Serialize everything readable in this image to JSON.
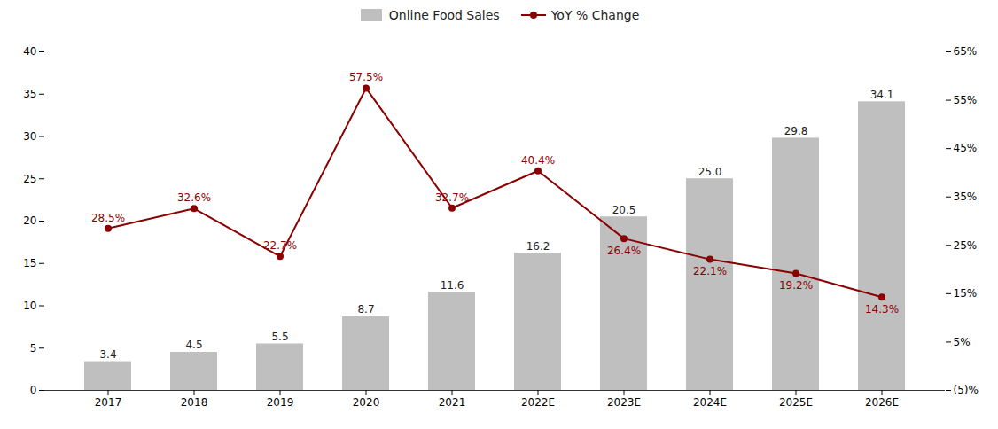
{
  "chart_data": {
    "type": "bar",
    "categories": [
      "2017",
      "2018",
      "2019",
      "2020",
      "2021",
      "2022E",
      "2023E",
      "2024E",
      "2025E",
      "2026E"
    ],
    "series": [
      {
        "name": "Online Food Sales",
        "type": "bar",
        "color": "#bfbfbf",
        "values": [
          3.4,
          4.5,
          5.5,
          8.7,
          11.6,
          16.2,
          20.5,
          25.0,
          29.8,
          34.1
        ],
        "value_labels": [
          "3.4",
          "4.5",
          "5.5",
          "8.7",
          "11.6",
          "16.2",
          "20.5",
          "25.0",
          "29.8",
          "34.1"
        ]
      },
      {
        "name": "YoY % Change",
        "type": "line",
        "axis": "y2",
        "color": "#8b0000",
        "marker": "circle",
        "values": [
          28.5,
          32.6,
          22.7,
          57.5,
          32.7,
          40.4,
          26.4,
          22.1,
          19.2,
          14.3
        ],
        "value_labels": [
          "28.5%",
          "32.6%",
          "22.7%",
          "57.5%",
          "32.7%",
          "40.4%",
          "26.4%",
          "22.1%",
          "19.2%",
          "14.3%"
        ]
      }
    ],
    "ylim": [
      0,
      40
    ],
    "yticks": [
      0,
      5,
      10,
      15,
      20,
      25,
      30,
      35,
      40
    ],
    "y2lim": [
      -5,
      65
    ],
    "y2ticks": [
      {
        "value": -5,
        "label": "(5)%"
      },
      {
        "value": 5,
        "label": "5%"
      },
      {
        "value": 15,
        "label": "15%"
      },
      {
        "value": 25,
        "label": "25%"
      },
      {
        "value": 35,
        "label": "35%"
      },
      {
        "value": 45,
        "label": "45%"
      },
      {
        "value": 55,
        "label": "55%"
      },
      {
        "value": 65,
        "label": "65%"
      }
    ],
    "legend": "top",
    "grid": false,
    "data_labels": true
  }
}
